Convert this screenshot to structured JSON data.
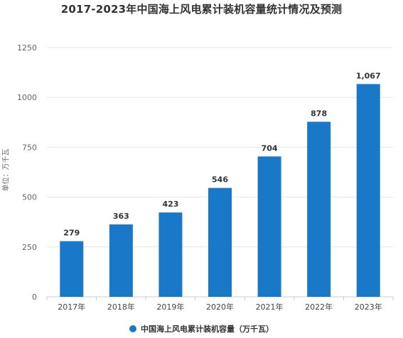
{
  "chart_data": {
    "type": "bar",
    "title": "2017-2023年中国海上风电累计装机容量统计情况及预测",
    "categories": [
      "2017年",
      "2018年",
      "2019年",
      "2020年",
      "2021年",
      "2022年",
      "2023年"
    ],
    "series": [
      {
        "name": "中国海上风电累计装机容量（万千瓦）",
        "values": [
          279,
          363,
          423,
          546,
          704,
          878,
          1067
        ],
        "value_labels": [
          "279",
          "363",
          "423",
          "546",
          "704",
          "878",
          "1,067"
        ]
      }
    ],
    "yticks": [
      "0",
      "250",
      "500",
      "750",
      "1000",
      "1250"
    ],
    "ylim": [
      0,
      1250
    ],
    "ylabel": "单位：万千瓦",
    "xlabel": "",
    "grid": true,
    "legend_position": "bottom-center",
    "bar_color": "#1a78c8"
  },
  "colors": {
    "bar": "#1a78c8",
    "grid": "#e6e6e6",
    "axis": "#cccccc",
    "text": "#333333"
  }
}
